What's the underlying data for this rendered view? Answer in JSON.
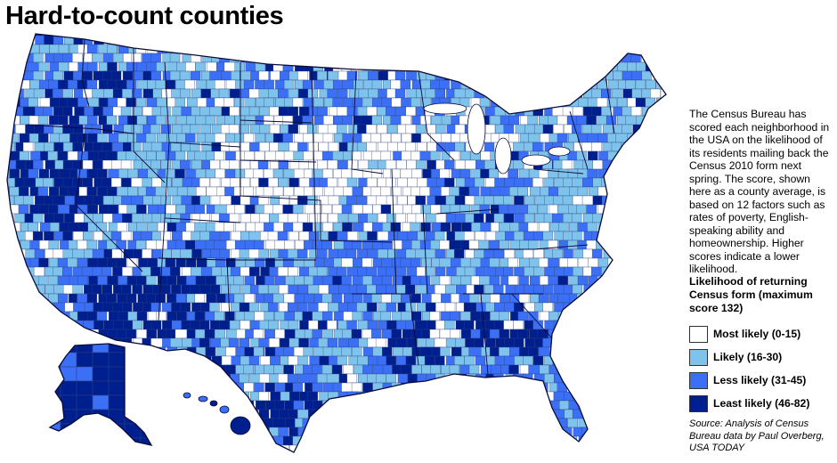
{
  "title": "Hard-to-count counties",
  "description": "The Census Bureau has scored each neighborhood in the USA on the likelihood of its residents mailing back the Census 2010 form next spring. The score, shown here as a county average, is based on 12 factors such as rates of poverty, English-speaking ability and homeownership. Higher scores indicate a lower likelihood.",
  "legend": {
    "title": "Likelihood of returning Census form (maximum score 132)",
    "items": [
      {
        "label": "Most likely (0-15)",
        "color": "#ffffff"
      },
      {
        "label": "Likely (16-30)",
        "color": "#7ec3ec"
      },
      {
        "label": "Less likely (31-45)",
        "color": "#3b6ff5"
      },
      {
        "label": "Least likely (46-82)",
        "color": "#001f8f"
      }
    ]
  },
  "source": "Source: Analysis of Census Bureau data by Paul Overberg, USA TODAY",
  "map": {
    "border_color": "#0a0a3a",
    "county_line_color": "#30407a"
  }
}
